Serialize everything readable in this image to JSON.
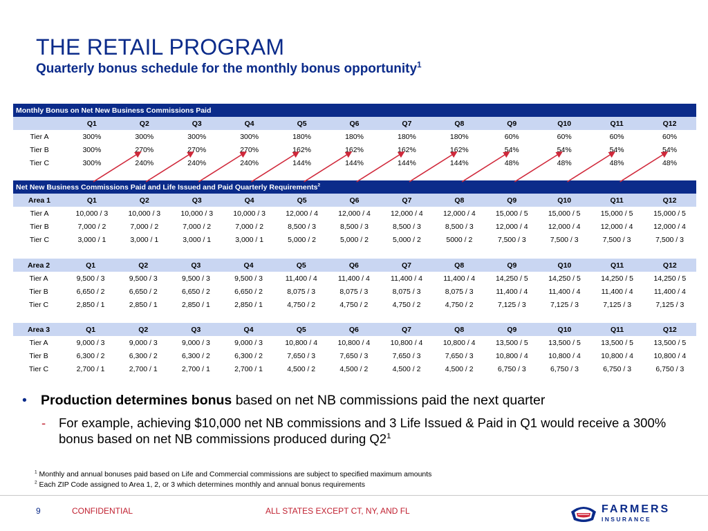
{
  "header": {
    "title": "THE RETAIL PROGRAM",
    "subtitle": "Quarterly bonus schedule for the monthly bonus opportunity",
    "subtitle_sup": "1"
  },
  "monthly_bonus": {
    "header": "Monthly Bonus on Net New Business Commissions Paid",
    "columns": [
      "",
      "Q1",
      "Q2",
      "Q3",
      "Q4",
      "Q5",
      "Q6",
      "Q7",
      "Q8",
      "Q9",
      "Q10",
      "Q11",
      "Q12"
    ],
    "rows": [
      [
        "Tier A",
        "300%",
        "300%",
        "300%",
        "300%",
        "180%",
        "180%",
        "180%",
        "180%",
        "60%",
        "60%",
        "60%",
        "60%"
      ],
      [
        "Tier B",
        "300%",
        "270%",
        "270%",
        "270%",
        "162%",
        "162%",
        "162%",
        "162%",
        "54%",
        "54%",
        "54%",
        "54%"
      ],
      [
        "Tier C",
        "300%",
        "240%",
        "240%",
        "240%",
        "144%",
        "144%",
        "144%",
        "144%",
        "48%",
        "48%",
        "48%",
        "48%"
      ]
    ]
  },
  "requirements": {
    "header": "Net New Business Commissions Paid and Life Issued and Paid Quarterly Requirements",
    "header_sup": "2",
    "areas": [
      {
        "columns": [
          "Area 1",
          "Q1",
          "Q2",
          "Q3",
          "Q4",
          "Q5",
          "Q6",
          "Q7",
          "Q8",
          "Q9",
          "Q10",
          "Q11",
          "Q12"
        ],
        "rows": [
          [
            "Tier A",
            "10,000 / 3",
            "10,000 / 3",
            "10,000 / 3",
            "10,000 / 3",
            "12,000 / 4",
            "12,000 / 4",
            "12,000 / 4",
            "12,000 / 4",
            "15,000 / 5",
            "15,000 / 5",
            "15,000 / 5",
            "15,000 / 5"
          ],
          [
            "Tier B",
            "7,000 / 2",
            "7,000 / 2",
            "7,000 / 2",
            "7,000 / 2",
            "8,500 / 3",
            "8,500 / 3",
            "8,500 / 3",
            "8,500 / 3",
            "12,000 / 4",
            "12,000 / 4",
            "12,000 / 4",
            "12,000 / 4"
          ],
          [
            "Tier C",
            "3,000 / 1",
            "3,000 / 1",
            "3,000 / 1",
            "3,000 / 1",
            "5,000 / 2",
            "5,000 / 2",
            "5,000 / 2",
            "5000 / 2",
            "7,500 / 3",
            "7,500 / 3",
            "7,500 / 3",
            "7,500 / 3"
          ]
        ]
      },
      {
        "columns": [
          "Area 2",
          "Q1",
          "Q2",
          "Q3",
          "Q4",
          "Q5",
          "Q6",
          "Q7",
          "Q8",
          "Q9",
          "Q10",
          "Q11",
          "Q12"
        ],
        "rows": [
          [
            "Tier A",
            "9,500 / 3",
            "9,500 / 3",
            "9,500 / 3",
            "9,500 / 3",
            "11,400 / 4",
            "11,400 / 4",
            "11,400 / 4",
            "11,400 / 4",
            "14,250 / 5",
            "14,250 / 5",
            "14,250 / 5",
            "14,250 / 5"
          ],
          [
            "Tier B",
            "6,650 / 2",
            "6,650 / 2",
            "6,650 / 2",
            "6,650 / 2",
            "8,075 / 3",
            "8,075 / 3",
            "8,075 / 3",
            "8,075 / 3",
            "11,400 / 4",
            "11,400 / 4",
            "11,400 / 4",
            "11,400 / 4"
          ],
          [
            "Tier C",
            "2,850 / 1",
            "2,850 / 1",
            "2,850 / 1",
            "2,850 / 1",
            "4,750 / 2",
            "4,750 / 2",
            "4,750 / 2",
            "4,750 / 2",
            "7,125 / 3",
            "7,125 / 3",
            "7,125 / 3",
            "7,125 / 3"
          ]
        ]
      },
      {
        "columns": [
          "Area 3",
          "Q1",
          "Q2",
          "Q3",
          "Q4",
          "Q5",
          "Q6",
          "Q7",
          "Q8",
          "Q9",
          "Q10",
          "Q11",
          "Q12"
        ],
        "rows": [
          [
            "Tier A",
            "9,000 / 3",
            "9,000 / 3",
            "9,000 / 3",
            "9,000 / 3",
            "10,800 / 4",
            "10,800 / 4",
            "10,800 / 4",
            "10,800 / 4",
            "13,500 / 5",
            "13,500 / 5",
            "13,500 / 5",
            "13,500 / 5"
          ],
          [
            "Tier B",
            "6,300 / 2",
            "6,300 / 2",
            "6,300 / 2",
            "6,300 / 2",
            "7,650 / 3",
            "7,650 / 3",
            "7,650 / 3",
            "7,650 / 3",
            "10,800 / 4",
            "10,800 / 4",
            "10,800 / 4",
            "10,800 / 4"
          ],
          [
            "Tier C",
            "2,700 / 1",
            "2,700 / 1",
            "2,700 / 1",
            "2,700 / 1",
            "4,500 / 2",
            "4,500 / 2",
            "4,500 / 2",
            "4,500 / 2",
            "6,750 / 3",
            "6,750 / 3",
            "6,750 / 3",
            "6,750 / 3"
          ]
        ]
      }
    ]
  },
  "bullets": {
    "main_bold": "Production determines bonus",
    "main_rest": " based on net NB commissions paid the next quarter",
    "sub_text": "For example, achieving $10,000 net NB commissions and 3 Life Issued & Paid in Q1 would receive a 300% bonus based on net NB commissions produced during Q2",
    "sub_sup": "1"
  },
  "footnotes": [
    {
      "num": "1",
      "text": "Monthly and annual bonuses paid based on Life and Commercial commissions are subject to specified maximum amounts"
    },
    {
      "num": "2",
      "text": "Each ZIP Code assigned to Area 1, 2, or 3 which determines monthly and annual bonus requirements"
    }
  ],
  "footer": {
    "page_number": "9",
    "confidential": "CONFIDENTIAL",
    "states": "ALL STATES EXCEPT CT, NY, AND FL",
    "logo_word": "FARMERS",
    "logo_sub": "INSURANCE"
  },
  "colors": {
    "navy": "#0b2b8a",
    "header_fill": "#0b2b8a",
    "column_fill": "#c9d6f2",
    "arrow_red": "#d0283a",
    "footer_red": "#c01f2f"
  },
  "icons": {
    "bullet": "round-bullet",
    "sub_bullet": "dash",
    "logo": "farmers-shield-logo"
  }
}
